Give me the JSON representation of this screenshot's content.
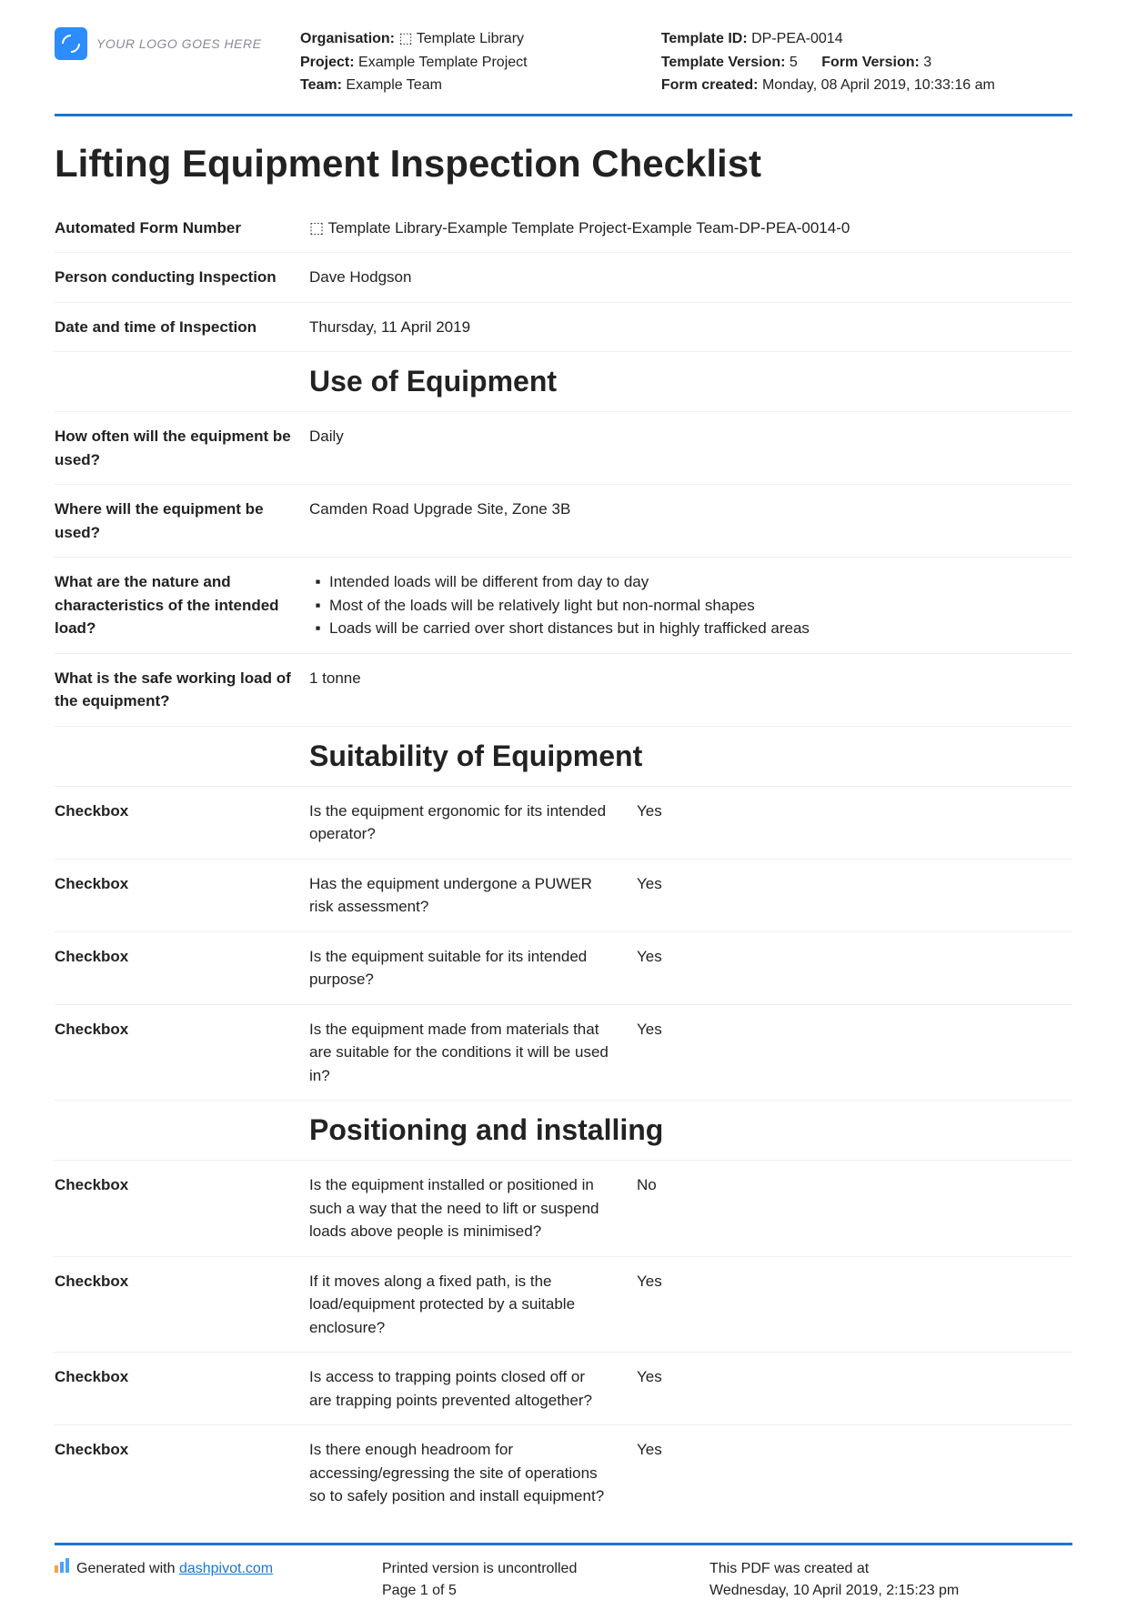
{
  "logo_text": "YOUR LOGO GOES HERE",
  "header": {
    "org_label": "Organisation:",
    "org_value": "⬚ Template Library",
    "project_label": "Project:",
    "project_value": "Example Template Project",
    "team_label": "Team:",
    "team_value": "Example Team",
    "template_id_label": "Template ID:",
    "template_id_value": "DP-PEA-0014",
    "template_version_label": "Template Version:",
    "template_version_value": "5",
    "form_version_label": "Form Version:",
    "form_version_value": "3",
    "form_created_label": "Form created:",
    "form_created_value": "Monday, 08 April 2019, 10:33:16 am"
  },
  "title": "Lifting Equipment Inspection Checklist",
  "basic": {
    "form_number_label": "Automated Form Number",
    "form_number_value": "⬚ Template Library-Example Template Project-Example Team-DP-PEA-0014-0",
    "person_label": "Person conducting Inspection",
    "person_value": "Dave Hodgson",
    "datetime_label": "Date and time of Inspection",
    "datetime_value": "Thursday, 11 April 2019"
  },
  "sec_use_heading": "Use of Equipment",
  "use": {
    "how_often_label": "How often will the equipment be used?",
    "how_often_value": "Daily",
    "where_label": "Where will the equipment be used?",
    "where_value": "Camden Road Upgrade Site, Zone 3B",
    "nature_label": "What are the nature and characteristics of the intended load?",
    "nature_item1": "Intended loads will be different from day to day",
    "nature_item2": "Most of the loads will be relatively light but non-normal shapes",
    "nature_item3": "Loads will be carried over short distances but in highly trafficked areas",
    "swl_label": "What is the safe working load of the equipment?",
    "swl_value": "1 tonne"
  },
  "sec_suit_heading": "Suitability of Equipment",
  "checkbox_text": "Checkbox",
  "suit": {
    "q1": "Is the equipment ergonomic for its intended operator?",
    "a1": "Yes",
    "q2": "Has the equipment undergone a PUWER risk assessment?",
    "a2": "Yes",
    "q3": "Is the equipment suitable for its intended purpose?",
    "a3": "Yes",
    "q4": "Is the equipment made from materials that are suitable for the conditions it will be used in?",
    "a4": "Yes"
  },
  "sec_pos_heading": "Positioning and installing",
  "pos": {
    "q1": "Is the equipment installed or positioned in such a way that the need to lift or suspend loads above people is minimised?",
    "a1": "No",
    "q2": "If it moves along a fixed path, is the load/equipment protected by a suitable enclosure?",
    "a2": "Yes",
    "q3": "Is access to trapping points closed off or are trapping points prevented altogether?",
    "a3": "Yes",
    "q4": "Is there enough headroom for accessing/egressing the site of operations so to safely position and install equipment?",
    "a4": "Yes"
  },
  "footer": {
    "generated_prefix": "Generated with ",
    "generated_link": "dashpivot.com",
    "uncontrolled": "Printed version is uncontrolled",
    "page": "Page 1 of 5",
    "created_label": "This PDF was created at",
    "created_value": "Wednesday, 10 April 2019, 2:15:23 pm"
  },
  "colors": {
    "accent": "#1976d2",
    "border_light": "#eeeeee",
    "logo_bg": "#2d8cff"
  }
}
